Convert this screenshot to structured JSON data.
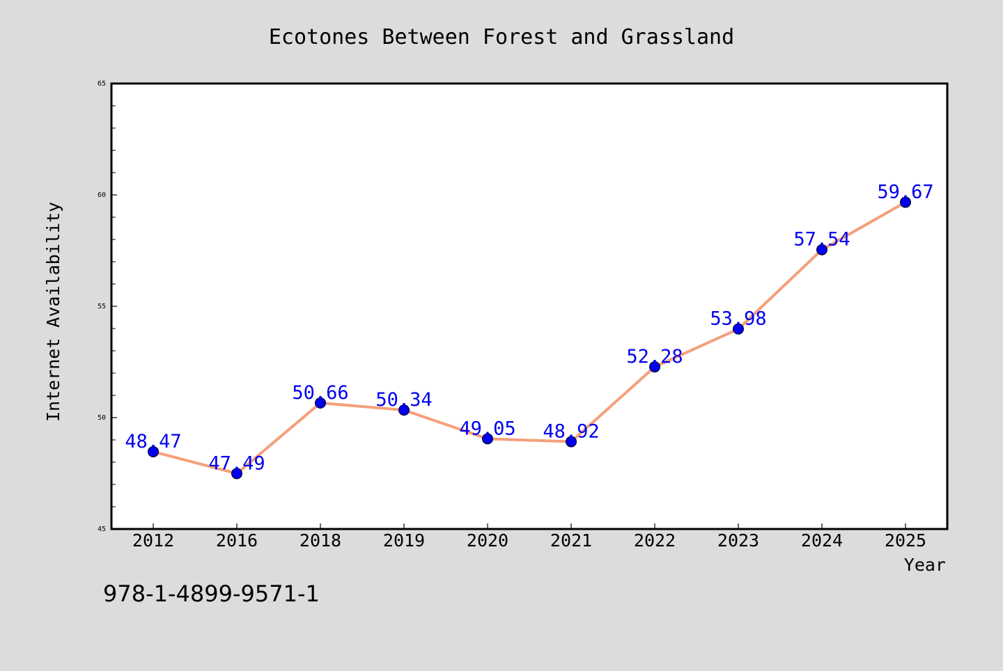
{
  "chart_data": {
    "type": "line",
    "title": "Ecotones Between Forest and Grassland",
    "xlabel": "Year",
    "ylabel": "Internet Availability",
    "categories": [
      "2012",
      "2016",
      "2018",
      "2019",
      "2020",
      "2021",
      "2022",
      "2023",
      "2024",
      "2025"
    ],
    "series": [
      {
        "values": [
          48.47,
          47.49,
          50.66,
          50.34,
          49.05,
          48.92,
          52.28,
          53.98,
          57.54,
          59.67
        ],
        "line_color": "#f4a07a",
        "marker_color": "#0000ee",
        "label_color": "#0000ee"
      }
    ],
    "ylim": [
      45,
      65
    ],
    "yticks": [
      45,
      50,
      55,
      60,
      65
    ],
    "grid": false,
    "legend": false,
    "data_labels": true
  },
  "caption": "978-1-4899-9571-1",
  "colors": {
    "background": "#dcdcdc",
    "plot_background": "#ffffff",
    "axis": "#000000"
  }
}
